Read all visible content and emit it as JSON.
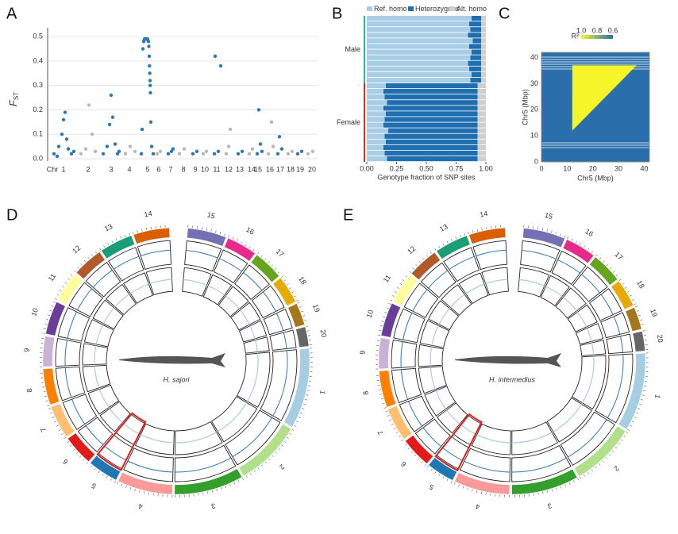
{
  "panels": [
    {
      "letter": "A",
      "chart": {
        "type": "scatter",
        "ylabel": "F",
        "ylabel_sub": "ST",
        "x_prefix": "Chr",
        "xlim": [
          0,
          340
        ],
        "ylim": [
          0,
          0.52
        ],
        "xticks": [
          {
            "value": 20,
            "label": "1"
          },
          {
            "value": 51,
            "label": "2"
          },
          {
            "value": 80,
            "label": "3"
          },
          {
            "value": 103,
            "label": "4"
          },
          {
            "value": 126,
            "label": "5"
          },
          {
            "value": 140,
            "label": "6"
          },
          {
            "value": 155,
            "label": "7"
          },
          {
            "value": 171,
            "label": "8"
          },
          {
            "value": 186,
            "label": "9"
          },
          {
            "value": 198,
            "label": "10"
          },
          {
            "value": 213,
            "label": "11"
          },
          {
            "value": 228,
            "label": "12"
          },
          {
            "value": 242,
            "label": "13"
          },
          {
            "value": 257,
            "label": "14"
          },
          {
            "value": 265,
            "label": "15"
          },
          {
            "value": 280,
            "label": "16"
          },
          {
            "value": 293,
            "label": "17"
          },
          {
            "value": 306,
            "label": "18"
          },
          {
            "value": 318,
            "label": "19"
          },
          {
            "value": 333,
            "label": "20"
          }
        ],
        "yticks": [
          {
            "value": 0,
            "label": "0.0"
          },
          {
            "value": 0.1,
            "label": "0.1"
          },
          {
            "value": 0.2,
            "label": "0.2"
          },
          {
            "value": 0.3,
            "label": "0.3"
          },
          {
            "value": 0.4,
            "label": "0.4"
          },
          {
            "value": 0.5,
            "label": "0.5"
          }
        ],
        "grid": true,
        "series": [
          {
            "color": "#2e78b7",
            "x": [
              8,
              14,
              18,
              20,
              22,
              26,
              30,
              12,
              24,
              33,
              70,
              75,
              78,
              80,
              82,
              85,
              88,
              90,
              118,
              120,
              121,
              122,
              123,
              124,
              125,
              126,
              127,
              127.5,
              128,
              128.3,
              128.6,
              129,
              129.2,
              129.5,
              130,
              131,
              133,
              119,
              152,
              156,
              158,
              183,
              188,
              210,
              211,
              215,
              218,
              240,
              245,
              264,
              266,
              268,
              270,
              290,
              292,
              295,
              315,
              320
            ],
            "values": [
              0.02,
              0.05,
              0.1,
              0.16,
              0.19,
              0.04,
              0.02,
              0.01,
              0.08,
              0.03,
              0.02,
              0.05,
              0.14,
              0.26,
              0.17,
              0.06,
              0.02,
              0.03,
              0.02,
              0.45,
              0.48,
              0.49,
              0.49,
              0.49,
              0.49,
              0.49,
              0.48,
              0.46,
              0.42,
              0.38,
              0.35,
              0.32,
              0.3,
              0.27,
              0.15,
              0.05,
              0.02,
              0.12,
              0.02,
              0.03,
              0.04,
              0.02,
              0.03,
              0.02,
              0.42,
              0.03,
              0.38,
              0.02,
              0.03,
              0.02,
              0.2,
              0.06,
              0.03,
              0.02,
              0.09,
              0.04,
              0.02,
              0.03
            ]
          },
          {
            "color": "#b8b8b8",
            "x": [
              42,
              48,
              52,
              56,
              60,
              98,
              104,
              110,
              138,
              142,
              166,
              172,
              196,
              200,
              225,
              230,
              228,
              254,
              258,
              278,
              282,
              284,
              303,
              308,
              328,
              334
            ],
            "values": [
              0.02,
              0.04,
              0.22,
              0.1,
              0.03,
              0.02,
              0.05,
              0.03,
              0.02,
              0.03,
              0.02,
              0.04,
              0.02,
              0.03,
              0.02,
              0.12,
              0.05,
              0.02,
              0.04,
              0.02,
              0.15,
              0.05,
              0.02,
              0.03,
              0.02,
              0.03
            ]
          }
        ]
      }
    },
    {
      "letter": "B",
      "chart": {
        "type": "stacked-bar",
        "xlabel": "Genotype fraction of SNP sites",
        "xlim": [
          0,
          1
        ],
        "xticks": [
          {
            "value": 0,
            "label": "0.00"
          },
          {
            "value": 0.25,
            "label": "0.25"
          },
          {
            "value": 0.5,
            "label": "0.50"
          },
          {
            "value": 0.75,
            "label": "0.75"
          },
          {
            "value": 1,
            "label": "1.00"
          }
        ],
        "series": [
          {
            "name": "Ref. homo",
            "color": "#a9cde6"
          },
          {
            "name": "Heterozygous",
            "color": "#1f6fb0"
          },
          {
            "name": "Alt. homo",
            "color": "#cfcfcf"
          }
        ],
        "groups": [
          {
            "label": "Male",
            "color": "#2ab3a6",
            "values": [
              [
                0.88,
                0.86,
                0.87,
                0.85,
                0.89,
                0.86,
                0.88,
                0.87,
                0.85,
                0.86,
                0.88,
                0.87
              ],
              [
                0.08,
                0.1,
                0.09,
                0.11,
                0.07,
                0.1,
                0.08,
                0.09,
                0.11,
                0.1,
                0.08,
                0.09
              ],
              [
                0.04,
                0.04,
                0.04,
                0.04,
                0.04,
                0.04,
                0.04,
                0.04,
                0.04,
                0.04,
                0.04,
                0.04
              ]
            ]
          },
          {
            "label": "Female",
            "color": "#c8372d",
            "values": [
              [
                0.16,
                0.14,
                0.15,
                0.17,
                0.14,
                0.16,
                0.15,
                0.14,
                0.18,
                0.15,
                0.16,
                0.14,
                0.15,
                0.17
              ],
              [
                0.77,
                0.79,
                0.78,
                0.76,
                0.79,
                0.77,
                0.78,
                0.79,
                0.75,
                0.78,
                0.77,
                0.79,
                0.78,
                0.76
              ],
              [
                0.07,
                0.07,
                0.07,
                0.07,
                0.07,
                0.07,
                0.07,
                0.07,
                0.07,
                0.07,
                0.07,
                0.07,
                0.07,
                0.07
              ]
            ]
          }
        ]
      }
    },
    {
      "letter": "C",
      "chart": {
        "type": "heatmap",
        "xlabel": "Chr5 (Mbp)",
        "ylabel": "Chr5 (Mbp)",
        "xlim": [
          0,
          42
        ],
        "ylim": [
          0,
          42
        ],
        "xticks": [
          0,
          10,
          20,
          30,
          40
        ],
        "yticks": [
          0,
          10,
          20,
          30,
          40
        ],
        "ld_block": [
          12,
          37
        ],
        "block_color": "#f5f52a",
        "background": "#2a6fab",
        "colorbar_label": "R²",
        "colorbar_ticks": [
          {
            "value": 1,
            "label": "1.0"
          },
          {
            "value": 0.8,
            "label": "0.8"
          },
          {
            "value": 0.6,
            "label": "0.6"
          }
        ]
      }
    },
    {
      "letter": "D",
      "chart": {
        "type": "circos",
        "species": "H. sajori",
        "chromosomes": [
          "1",
          "2",
          "3",
          "4",
          "5",
          "6",
          "7",
          "8",
          "9",
          "10",
          "11",
          "12",
          "13",
          "14",
          "15",
          "16",
          "17",
          "18",
          "19",
          "20"
        ],
        "lengths": [
          58,
          48,
          50,
          40,
          22,
          22,
          24,
          26,
          22,
          24,
          22,
          22,
          24,
          26,
          28,
          22,
          22,
          20,
          16,
          14
        ],
        "colors": [
          "#a6cee3",
          "#b2df8a",
          "#33a02c",
          "#fb9a99",
          "#1f78b4",
          "#e31a1c",
          "#fdbf6f",
          "#ff7f00",
          "#cab2d6",
          "#6a3d9a",
          "#ffff99",
          "#b15928",
          "#1b9e77",
          "#d95f02",
          "#7570b3",
          "#e7298a",
          "#66a61e",
          "#e6ab02",
          "#a6761d",
          "#666666"
        ],
        "highlight": 4
      }
    },
    {
      "letter": "E",
      "chart": {
        "type": "circos",
        "species": "H. intermedius",
        "chromosomes": [
          "1",
          "2",
          "3",
          "4",
          "5",
          "6",
          "7",
          "8",
          "9",
          "10",
          "11",
          "12",
          "13",
          "14",
          "15",
          "16",
          "17",
          "18",
          "19",
          "20"
        ],
        "lengths": [
          56,
          46,
          48,
          40,
          20,
          22,
          24,
          26,
          22,
          24,
          22,
          22,
          24,
          26,
          30,
          22,
          22,
          20,
          16,
          14
        ],
        "colors": [
          "#a6cee3",
          "#b2df8a",
          "#33a02c",
          "#fb9a99",
          "#1f78b4",
          "#e31a1c",
          "#fdbf6f",
          "#ff7f00",
          "#cab2d6",
          "#6a3d9a",
          "#ffff99",
          "#b15928",
          "#1b9e77",
          "#d95f02",
          "#7570b3",
          "#e7298a",
          "#66a61e",
          "#e6ab02",
          "#a6761d",
          "#666666"
        ],
        "highlight": 4
      }
    }
  ]
}
